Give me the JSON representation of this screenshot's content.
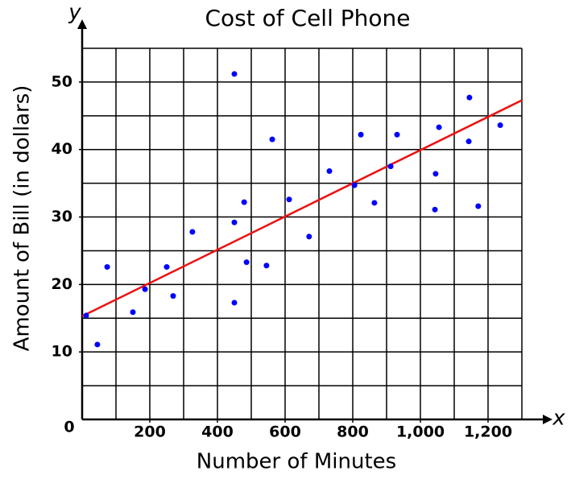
{
  "chart_data": {
    "type": "scatter",
    "title": "Cost of Cell Phone",
    "x_label": "Number of Minutes",
    "y_label": "Amount of Bill (in dollars)",
    "x_axis_name": "x",
    "y_axis_name": "y",
    "origin_label": "0",
    "xlim": [
      0,
      1300
    ],
    "ylim": [
      0,
      55
    ],
    "xticks": [
      200,
      400,
      600,
      800,
      {
        "value": 1000,
        "label": "1,000"
      },
      {
        "value": 1200,
        "label": "1,200"
      }
    ],
    "yticks": [
      10,
      20,
      30,
      40,
      50
    ],
    "x_grid": [
      100,
      200,
      300,
      400,
      500,
      600,
      700,
      800,
      900,
      1000,
      1100,
      1200,
      1300
    ],
    "y_grid": [
      5,
      10,
      15,
      20,
      25,
      30,
      35,
      40,
      45,
      50,
      55
    ],
    "points": {
      "color": "#0000ff",
      "x": [
        12,
        45,
        74,
        150,
        186,
        250,
        269,
        326,
        450,
        450,
        479,
        450,
        486,
        545,
        562,
        612,
        671,
        731,
        805,
        824,
        864,
        912,
        931,
        1045,
        1043,
        1055,
        1145,
        1143,
        1171,
        1236
      ],
      "values": [
        15.4,
        11.1,
        22.6,
        15.9,
        19.3,
        22.6,
        18.3,
        27.8,
        51.2,
        29.2,
        32.2,
        17.3,
        23.3,
        22.8,
        41.5,
        32.6,
        27.1,
        36.8,
        34.7,
        42.2,
        32.1,
        37.5,
        42.2,
        36.4,
        31.1,
        43.3,
        47.7,
        41.2,
        31.6,
        43.6
      ]
    },
    "trend_line": {
      "color": "#ee1111",
      "x": [
        0,
        1300
      ],
      "values": [
        15.3,
        47.3
      ]
    }
  }
}
